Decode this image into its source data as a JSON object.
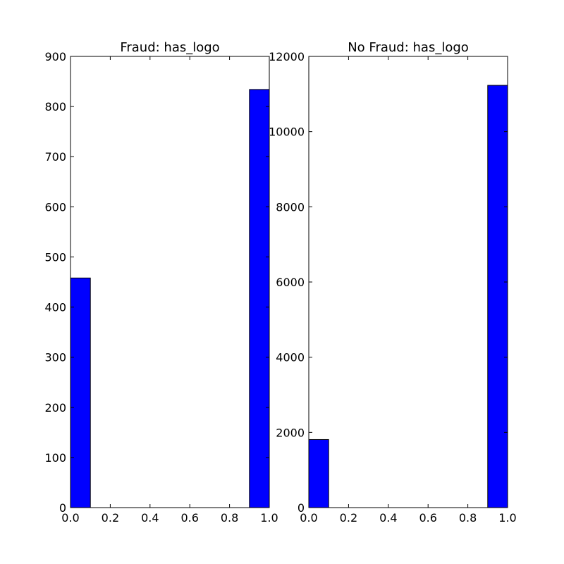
{
  "colors": {
    "bar_fill": "#0000ff",
    "bar_edge": "#000000",
    "axes_edge": "#000000",
    "background": "#ffffff"
  },
  "chart_data": [
    {
      "type": "bar",
      "title": "Fraud: has_logo",
      "xlabel": "",
      "ylabel": "",
      "bin_edges": [
        0.0,
        0.1,
        0.2,
        0.3,
        0.4,
        0.5,
        0.6,
        0.7,
        0.8,
        0.9,
        1.0
      ],
      "values": [
        458,
        0,
        0,
        0,
        0,
        0,
        0,
        0,
        0,
        834
      ],
      "xlim": [
        0.0,
        1.0
      ],
      "ylim": [
        0,
        900
      ],
      "xticks": [
        "0.0",
        "0.2",
        "0.4",
        "0.6",
        "0.8",
        "1.0"
      ],
      "yticks": [
        "0",
        "100",
        "200",
        "300",
        "400",
        "500",
        "600",
        "700",
        "800",
        "900"
      ],
      "grid": false,
      "legend": "none"
    },
    {
      "type": "bar",
      "title": "No Fraud: has_logo",
      "xlabel": "",
      "ylabel": "",
      "bin_edges": [
        0.0,
        0.1,
        0.2,
        0.3,
        0.4,
        0.5,
        0.6,
        0.7,
        0.8,
        0.9,
        1.0
      ],
      "values": [
        1810,
        0,
        0,
        0,
        0,
        0,
        0,
        0,
        0,
        11230
      ],
      "xlim": [
        0.0,
        1.0
      ],
      "ylim": [
        0,
        12000
      ],
      "xticks": [
        "0.0",
        "0.2",
        "0.4",
        "0.6",
        "0.8",
        "1.0"
      ],
      "yticks": [
        "0",
        "2000",
        "4000",
        "6000",
        "8000",
        "10000",
        "12000"
      ],
      "grid": false,
      "legend": "none"
    }
  ]
}
